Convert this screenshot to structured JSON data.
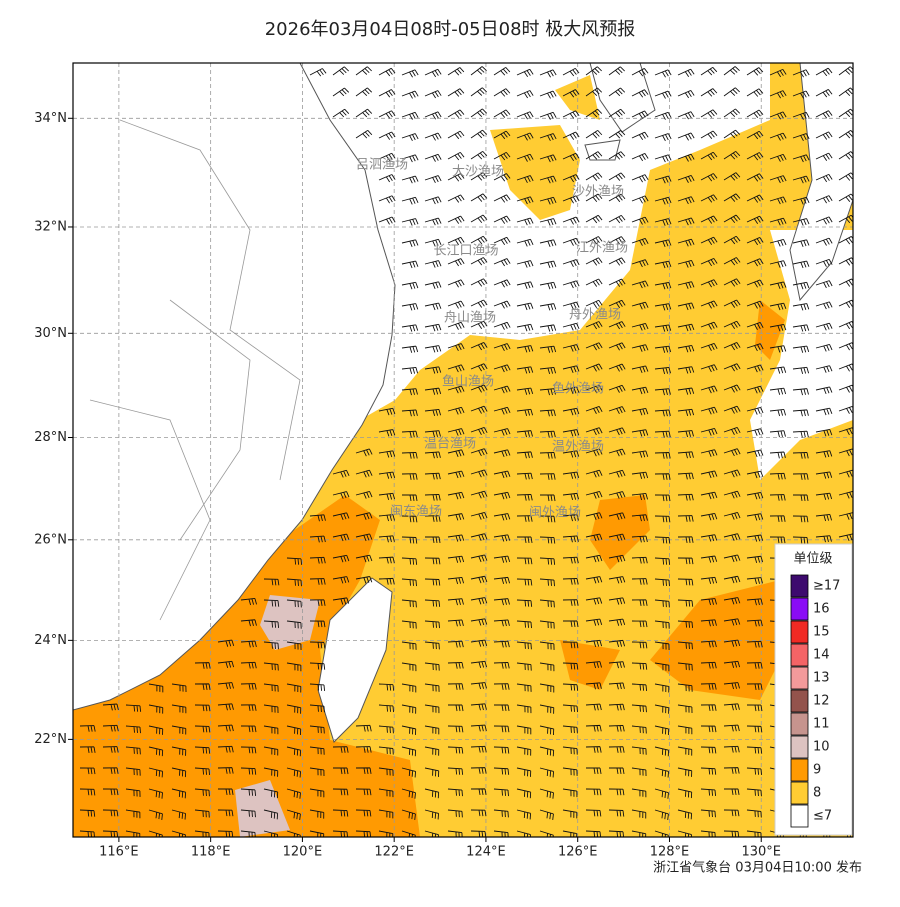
{
  "chart_data": {
    "type": "map",
    "title": "2026年03月04日08时-05日08时 极大风预报",
    "footer": "浙江省气象台 03月04日10:00 发布",
    "xlim": [
      115,
      132
    ],
    "ylim": [
      20,
      35
    ],
    "xticks": [
      {
        "value": 116,
        "label": "116°E"
      },
      {
        "value": 118,
        "label": "118°E"
      },
      {
        "value": 120,
        "label": "120°E"
      },
      {
        "value": 122,
        "label": "122°E"
      },
      {
        "value": 124,
        "label": "124°E"
      },
      {
        "value": 126,
        "label": "126°E"
      },
      {
        "value": 128,
        "label": "128°E"
      },
      {
        "value": 130,
        "label": "130°E"
      }
    ],
    "yticks": [
      {
        "value": 22,
        "label": "22°N"
      },
      {
        "value": 24,
        "label": "24°N"
      },
      {
        "value": 26,
        "label": "26°N"
      },
      {
        "value": 28,
        "label": "28°N"
      },
      {
        "value": 30,
        "label": "30°N"
      },
      {
        "value": 32,
        "label": "32°N"
      },
      {
        "value": 34,
        "label": "34°N"
      }
    ],
    "grid": true,
    "fishing_grounds": [
      "吕泗渔场",
      "大沙渔场",
      "沙外渔场",
      "长江口渔场",
      "江外渔场",
      "舟山渔场",
      "舟外渔场",
      "鱼山渔场",
      "鱼外渔场",
      "温台渔场",
      "温外渔场",
      "闽东渔场",
      "闽外渔场"
    ],
    "legend": {
      "title": "单位级",
      "position": "lower right",
      "items": [
        {
          "label": "≥17",
          "color": "#3d0a6e"
        },
        {
          "label": "16",
          "color": "#8a0cf5"
        },
        {
          "label": "15",
          "color": "#f02a24"
        },
        {
          "label": "14",
          "color": "#f46466"
        },
        {
          "label": "13",
          "color": "#f39a9b"
        },
        {
          "label": "12",
          "color": "#93534c"
        },
        {
          "label": "11",
          "color": "#c6948e"
        },
        {
          "label": "10",
          "color": "#ddc3c1"
        },
        {
          "label": "9",
          "color": "#ff9a02"
        },
        {
          "label": "8",
          "color": "#ffcc33"
        },
        {
          "label": "≤7",
          "color": "#ffffff"
        }
      ]
    }
  }
}
